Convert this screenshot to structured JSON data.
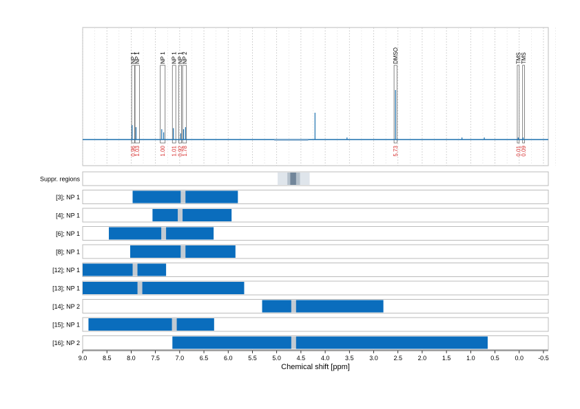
{
  "chart_data": {
    "type": "line",
    "title": "",
    "xlabel": "Chemical shift [ppm]",
    "xlim": [
      9.0,
      -0.6
    ],
    "x_reversed": true,
    "x_ticks": [
      "9.0",
      "8.5",
      "8.0",
      "7.5",
      "7.0",
      "6.5",
      "6.0",
      "5.5",
      "5.0",
      "4.5",
      "4.0",
      "3.5",
      "3.0",
      "2.5",
      "2.0",
      "1.5",
      "1.0",
      "0.5",
      "0.0",
      "-0.5"
    ],
    "x_tick_values": [
      9.0,
      8.5,
      8.0,
      7.5,
      7.0,
      6.5,
      6.0,
      5.5,
      5.0,
      4.5,
      4.0,
      3.5,
      3.0,
      2.5,
      2.0,
      1.5,
      1.0,
      0.5,
      0.0,
      -0.5
    ],
    "colors": {
      "spectrum": "#1a6fae",
      "bar": "#0a6dbd",
      "marker": "#c2cad2",
      "integral": "#d62b2b",
      "grid": "#c8c8c8"
    },
    "spectrum_peaks": [
      {
        "shift": 7.98,
        "height": 0.14
      },
      {
        "shift": 7.9,
        "height": 0.12
      },
      {
        "shift": 7.37,
        "height": 0.1
      },
      {
        "shift": 7.33,
        "height": 0.07
      },
      {
        "shift": 7.13,
        "height": 0.11
      },
      {
        "shift": 6.98,
        "height": 0.06
      },
      {
        "shift": 6.92,
        "height": 0.1
      },
      {
        "shift": 6.88,
        "height": 0.12
      },
      {
        "shift": 4.21,
        "height": 0.26
      },
      {
        "shift": 2.55,
        "height": 0.48
      },
      {
        "shift": 3.55,
        "height": 0.02
      },
      {
        "shift": 1.18,
        "height": 0.02
      },
      {
        "shift": 0.72,
        "height": 0.02
      },
      {
        "shift": 0.02,
        "height": 0.02
      },
      {
        "shift": -0.08,
        "height": 0.02
      }
    ],
    "regions": [
      {
        "label": "NP 1",
        "from": 7.99,
        "to": 7.93,
        "integral": "0.96"
      },
      {
        "label": "NP 1",
        "from": 7.92,
        "to": 7.83,
        "integral": "1.03"
      },
      {
        "label": "NP 1",
        "from": 7.4,
        "to": 7.3,
        "integral": "1.00"
      },
      {
        "label": "NP 1",
        "from": 7.15,
        "to": 7.08,
        "integral": "1.01"
      },
      {
        "label": "NP 1",
        "from": 7.02,
        "to": 6.96,
        "integral": "0.92"
      },
      {
        "label": "NP 2",
        "from": 6.94,
        "to": 6.86,
        "integral": "1.78"
      },
      {
        "label": "DMSO",
        "from": 2.58,
        "to": 2.52,
        "integral": "5.73"
      },
      {
        "label": "TMS",
        "from": 0.04,
        "to": 0.0,
        "integral": "0.01"
      },
      {
        "label": "TMS",
        "from": -0.07,
        "to": -0.11,
        "integral": "0.09"
      }
    ],
    "suppression": {
      "label": "Suppr. regions",
      "outer": [
        4.98,
        4.32
      ],
      "mid": [
        4.78,
        4.52
      ],
      "inner": [
        4.72,
        4.6
      ]
    },
    "bar_rows": [
      {
        "label": "[3]; NP 1",
        "from": 7.97,
        "to": 5.8,
        "marker": 6.93
      },
      {
        "label": "[4]; NP 1",
        "from": 7.56,
        "to": 5.93,
        "marker": 6.99
      },
      {
        "label": "[6]; NP 1",
        "from": 8.46,
        "to": 6.3,
        "marker": 7.33
      },
      {
        "label": "[8]; NP 1",
        "from": 8.02,
        "to": 5.85,
        "marker": 6.93
      },
      {
        "label": "[12]; NP 1",
        "from": 9.0,
        "to": 7.28,
        "marker": 7.92
      },
      {
        "label": "[13]; NP 1",
        "from": 9.0,
        "to": 5.67,
        "marker": 7.82
      },
      {
        "label": "[14]; NP 2",
        "from": 5.3,
        "to": 2.8,
        "marker": 4.65
      },
      {
        "label": "[15]; NP 1",
        "from": 8.88,
        "to": 6.29,
        "marker": 7.11
      },
      {
        "label": "[16]; NP 2",
        "from": 7.15,
        "to": 0.65,
        "marker": 4.65
      }
    ]
  }
}
